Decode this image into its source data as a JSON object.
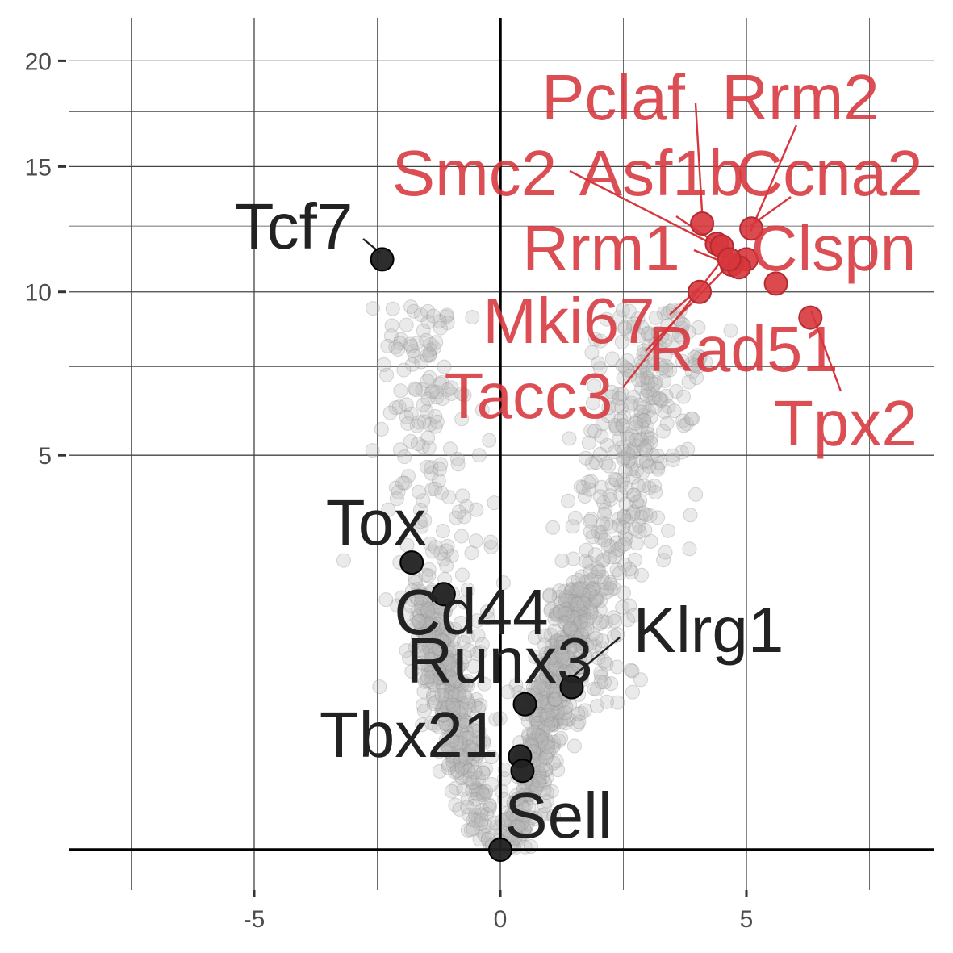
{
  "chart_data": {
    "type": "scatter",
    "title": "",
    "xlabel": "",
    "ylabel": "",
    "xlim": [
      -8.8,
      8.8
    ],
    "x_ticks": [
      -5,
      0,
      5
    ],
    "y_ticks": [
      5,
      10,
      15,
      20
    ],
    "y_scale": "square-root",
    "grid": true,
    "colors": {
      "highlight": "#d6363c",
      "marker": "#222222",
      "background_points": "#b8b8b8",
      "grid": "#444444",
      "tick_text": "#4d4d4d"
    },
    "labeled_genes": [
      {
        "label": "Pclaf",
        "x": 4.1,
        "y": 12.6,
        "group": "highlight"
      },
      {
        "label": "Rrm2",
        "x": 5.0,
        "y": 11.2,
        "group": "highlight"
      },
      {
        "label": "Smc2",
        "x": 4.4,
        "y": 11.8,
        "group": "highlight"
      },
      {
        "label": "Asf1b",
        "x": 4.5,
        "y": 11.7,
        "group": "highlight"
      },
      {
        "label": "Ccna2",
        "x": 5.1,
        "y": 12.4,
        "group": "highlight"
      },
      {
        "label": "Rrm1",
        "x": 4.7,
        "y": 11.0,
        "group": "highlight"
      },
      {
        "label": "Clspn",
        "x": 4.85,
        "y": 10.9,
        "group": "highlight"
      },
      {
        "label": "Mki67",
        "x": 4.05,
        "y": 10.0,
        "group": "highlight"
      },
      {
        "label": "Rad51",
        "x": 5.6,
        "y": 10.3,
        "group": "highlight"
      },
      {
        "label": "Tacc3",
        "x": 4.65,
        "y": 11.2,
        "group": "highlight"
      },
      {
        "label": "Tpx2",
        "x": 6.3,
        "y": 9.1,
        "group": "highlight"
      },
      {
        "label": "Tcf7",
        "x": -2.4,
        "y": 11.2,
        "group": "marker"
      },
      {
        "label": "Tox",
        "x": -1.8,
        "y": 2.65,
        "group": "marker"
      },
      {
        "label": "Cd44",
        "x": -1.15,
        "y": 2.1,
        "group": "marker"
      },
      {
        "label": "Runx3",
        "x": 0.5,
        "y": 0.68,
        "group": "marker"
      },
      {
        "label": "Klrg1",
        "x": 1.45,
        "y": 0.85,
        "group": "marker"
      },
      {
        "label": "Tbx21",
        "x": 0.4,
        "y": 0.28,
        "group": "marker"
      },
      {
        "label": "Sell",
        "x": 0.45,
        "y": 0.2,
        "group": "marker"
      },
      {
        "label": "",
        "x": 0.0,
        "y": 0.0,
        "group": "marker"
      }
    ],
    "background_cloud_seed": 7,
    "background_cloud_count": 1500
  }
}
